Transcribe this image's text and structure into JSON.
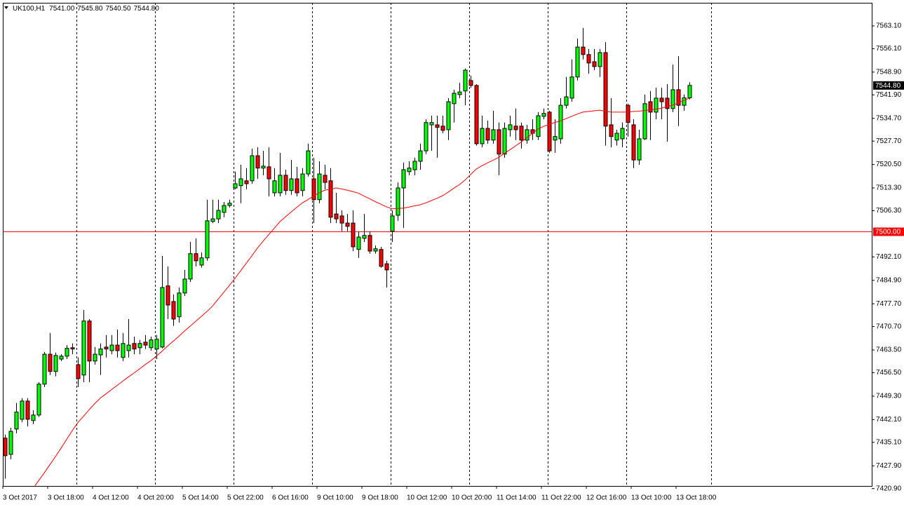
{
  "header": {
    "symbol": "UK100,H1",
    "open": "7541.00",
    "high": "7545.80",
    "low": "7540.50",
    "close": "7544.80"
  },
  "chart_data": {
    "type": "candlestick",
    "categories": [
      "3 Oct 2017",
      null,
      null,
      null,
      null,
      null,
      null,
      null,
      "3 Oct 18:00",
      null,
      null,
      null,
      null,
      null,
      null,
      null,
      "4 Oct 12:00",
      null,
      null,
      null,
      null,
      null,
      null,
      null,
      "4 Oct 20:00",
      null,
      null,
      null,
      null,
      null,
      null,
      null,
      "5 Oct 14:00",
      null,
      null,
      null,
      null,
      null,
      null,
      null,
      "5 Oct 22:00",
      null,
      null,
      null,
      null,
      null,
      null,
      null,
      "6 Oct 16:00",
      null,
      null,
      null,
      null,
      null,
      null,
      null,
      "9 Oct 10:00",
      null,
      null,
      null,
      null,
      null,
      null,
      null,
      "9 Oct 18:00",
      null,
      null,
      null,
      null,
      null,
      null,
      null,
      "10 Oct 12:00",
      null,
      null,
      null,
      null,
      null,
      null,
      null,
      "10 Oct 20:00",
      null,
      null,
      null,
      null,
      null,
      null,
      null,
      "11 Oct 14:00",
      null,
      null,
      null,
      null,
      null,
      null,
      null,
      "11 Oct 22:00",
      null,
      null,
      null,
      null,
      null,
      null,
      null,
      "12 Oct 16:00",
      null,
      null,
      null,
      null,
      null,
      null,
      null,
      "13 Oct 10:00",
      null,
      null,
      null,
      null,
      null,
      null,
      null,
      "13 Oct 18:00",
      null,
      null
    ],
    "open": [
      7436.4,
      7431.4,
      7439.2,
      7442.2,
      7447.8,
      7441.8,
      7443.5,
      7453.0,
      7462.2,
      7456.9,
      7460.7,
      7461.6,
      7464.2,
      7459.0,
      7455.8,
      7472.4,
      7460.1,
      7462.0,
      7464.4,
      7463.3,
      7465.0,
      7461.2,
      7463.3,
      7465.5,
      7464.2,
      7465.9,
      7464.2,
      7463.8,
      7464.4,
      7483.2,
      7478.4,
      7473.7,
      7481.0,
      7485.3,
      7493.1,
      7489.6,
      7491.8,
      7503.0,
      7503.8,
      7505.8,
      7507.9,
      7513.3,
      7514.0,
      7515.5,
      7515.5,
      7523.2,
      7519.4,
      7519.8,
      7511.8,
      7511.8,
      7517.2,
      7512.5,
      7516.1,
      7512.5,
      7517.6,
      7516.1,
      7509.7,
      7517.2,
      7515.5,
      7505.3,
      7504.7,
      7502.5,
      7502.5,
      7494.4,
      7497.8,
      7498.7,
      7493.9,
      7494.4,
      7490.0,
      7500.0,
      7504.9,
      7513.3,
      7518.3,
      7518.9,
      7521.5,
      7524.7,
      7532.7,
      7532.7,
      7532.3,
      7531.2,
      7539.2,
      7542.0,
      7543.1,
      7546.3,
      7544.8,
      7526.9,
      7531.6,
      7528.0,
      7531.2,
      7523.7,
      7531.2,
      7532.3,
      7532.3,
      7528.0,
      7531.2,
      7529.1,
      7535.3,
      7536.6,
      7528.0,
      7528.4,
      7538.7,
      7540.9,
      7547.4,
      7556.6,
      7554.3,
      7552.1,
      7550.6,
      7554.9,
      7532.7,
      7528.0,
      7528.4,
      7538.7,
      7532.7,
      7521.9,
      7528.4,
      7539.8,
      7536.6,
      7540.9,
      7540.9,
      7537.7,
      7543.5,
      7538.7,
      7541.0
    ],
    "high": [
      7437.5,
      7439.6,
      7447.2,
      7448.7,
      7448.7,
      7445.0,
      7453.6,
      7462.9,
      7468.7,
      7462.7,
      7462.2,
      7465.0,
      7465.5,
      7461.2,
      7475.8,
      7473.0,
      7464.4,
      7465.5,
      7468.1,
      7468.1,
      7469.8,
      7468.7,
      7473.0,
      7467.6,
      7466.6,
      7468.1,
      7467.6,
      7468.1,
      7492.4,
      7489.2,
      7480.6,
      7482.7,
      7488.1,
      7496.7,
      7497.8,
      7493.5,
      7509.7,
      7509.7,
      7509.7,
      7509.0,
      7509.7,
      7518.3,
      7520.4,
      7519.4,
      7525.4,
      7525.8,
      7524.7,
      7525.8,
      7519.4,
      7524.1,
      7518.9,
      7521.9,
      7519.8,
      7519.4,
      7526.9,
      7522.6,
      7521.5,
      7520.4,
      7519.4,
      7511.8,
      7506.4,
      7505.3,
      7506.4,
      7500.0,
      7505.3,
      7500.0,
      7495.6,
      7495.2,
      7490.9,
      7506.4,
      7515.0,
      7521.1,
      7521.5,
      7522.6,
      7526.9,
      7534.4,
      7535.5,
      7535.5,
      7535.5,
      7540.9,
      7543.5,
      7545.6,
      7550.0,
      7547.8,
      7545.2,
      7535.5,
      7534.0,
      7537.0,
      7533.4,
      7533.4,
      7535.5,
      7537.7,
      7533.4,
      7532.7,
      7534.4,
      7536.6,
      7537.7,
      7537.0,
      7534.4,
      7540.9,
      7547.4,
      7552.8,
      7559.2,
      7562.5,
      7556.0,
      7556.0,
      7556.0,
      7558.1,
      7540.9,
      7531.2,
      7533.4,
      7539.2,
      7534.4,
      7531.2,
      7542.0,
      7543.1,
      7544.1,
      7544.1,
      7545.2,
      7551.2,
      7553.8,
      7542.0,
      7545.8
    ],
    "low": [
      7423.9,
      7429.9,
      7437.9,
      7441.3,
      7440.0,
      7440.7,
      7442.9,
      7452.1,
      7455.8,
      7455.4,
      7460.1,
      7460.7,
      7462.2,
      7452.1,
      7453.6,
      7453.6,
      7459.0,
      7455.8,
      7461.2,
      7462.2,
      7461.2,
      7460.1,
      7461.2,
      7462.2,
      7462.2,
      7463.8,
      7463.3,
      7460.7,
      7464.0,
      7473.0,
      7470.9,
      7471.9,
      7480.1,
      7484.4,
      7489.2,
      7488.8,
      7490.9,
      7502.5,
      7502.5,
      7504.3,
      7507.3,
      7512.9,
      7508.6,
      7512.9,
      7514.6,
      7516.1,
      7517.2,
      7510.7,
      7510.7,
      7510.7,
      7511.2,
      7511.2,
      7510.7,
      7510.7,
      7516.8,
      7502.5,
      7508.6,
      7512.9,
      7502.5,
      7502.5,
      7500.0,
      7500.0,
      7493.9,
      7491.8,
      7496.7,
      7493.1,
      7493.1,
      7488.8,
      7482.7,
      7496.7,
      7503.2,
      7501.0,
      7517.2,
      7517.2,
      7518.9,
      7523.7,
      7524.7,
      7522.6,
      7530.1,
      7528.0,
      7533.4,
      7540.9,
      7538.7,
      7544.1,
      7526.3,
      7525.8,
      7526.9,
      7526.9,
      7517.2,
      7522.6,
      7529.1,
      7528.0,
      7525.4,
      7526.9,
      7528.0,
      7528.0,
      7534.4,
      7524.1,
      7524.1,
      7526.9,
      7537.7,
      7539.8,
      7546.3,
      7552.8,
      7548.4,
      7549.5,
      7547.4,
      7526.3,
      7525.8,
      7526.3,
      7525.8,
      7529.1,
      7519.4,
      7520.4,
      7528.0,
      7528.0,
      7534.4,
      7534.4,
      7527.5,
      7536.6,
      7532.3,
      7537.0,
      7540.5
    ],
    "close": [
      7431.0,
      7438.5,
      7444.4,
      7447.8,
      7442.2,
      7443.5,
      7453.0,
      7462.2,
      7456.9,
      7461.8,
      7461.6,
      7464.0,
      7463.8,
      7454.7,
      7472.4,
      7460.1,
      7462.2,
      7463.8,
      7463.8,
      7465.0,
      7463.3,
      7465.5,
      7465.0,
      7463.8,
      7465.5,
      7465.0,
      7466.6,
      7466.8,
      7482.7,
      7477.3,
      7473.0,
      7481.0,
      7485.3,
      7493.1,
      7490.9,
      7491.8,
      7503.2,
      7503.8,
      7506.4,
      7507.9,
      7508.6,
      7514.6,
      7516.1,
      7514.6,
      7523.2,
      7519.4,
      7520.0,
      7516.1,
      7515.5,
      7517.2,
      7512.5,
      7516.1,
      7511.8,
      7517.6,
      7524.7,
      7509.7,
      7517.6,
      7515.0,
      7504.3,
      7503.8,
      7502.5,
      7501.5,
      7495.2,
      7498.2,
      7498.7,
      7493.9,
      7494.6,
      7489.2,
      7488.1,
      7504.7,
      7513.3,
      7518.9,
      7519.4,
      7521.5,
      7524.7,
      7533.4,
      7533.4,
      7531.9,
      7531.0,
      7539.8,
      7542.4,
      7542.8,
      7549.5,
      7544.8,
      7526.9,
      7531.6,
      7528.0,
      7531.2,
      7523.7,
      7531.6,
      7532.7,
      7531.2,
      7528.0,
      7531.2,
      7530.1,
      7535.5,
      7536.2,
      7524.7,
      7529.1,
      7538.7,
      7541.3,
      7547.4,
      7556.6,
      7554.3,
      7551.7,
      7550.6,
      7554.9,
      7532.3,
      7529.1,
      7530.1,
      7531.6,
      7533.4,
      7521.9,
      7528.4,
      7539.2,
      7536.6,
      7540.9,
      7539.8,
      7537.7,
      7543.5,
      7538.7,
      7541.0,
      7544.8
    ],
    "up_color": "#00ff00",
    "down_color": "#ff0000",
    "moving_average": {
      "color": "#ff0000",
      "values": [
        null,
        null,
        null,
        null,
        null,
        7420.9,
        7423.3,
        7425.7,
        7428.2,
        7430.7,
        7433.3,
        7436.0,
        7438.7,
        7441.2,
        7443.1,
        7445.1,
        7447.0,
        7448.7,
        7450.0,
        7451.3,
        7452.6,
        7453.9,
        7455.2,
        7456.4,
        7457.7,
        7459.0,
        7460.2,
        7461.6,
        7463.1,
        7464.7,
        7466.2,
        7467.7,
        7469.3,
        7470.8,
        7472.3,
        7473.8,
        7475.3,
        7477.0,
        7479.1,
        7481.2,
        7483.3,
        7485.5,
        7487.8,
        7490.1,
        7492.4,
        7494.8,
        7496.9,
        7498.9,
        7500.9,
        7502.9,
        7504.4,
        7505.9,
        7507.3,
        7508.7,
        7509.7,
        7510.8,
        7511.8,
        7512.6,
        7512.9,
        7513.3,
        7513.0,
        7512.6,
        7512.2,
        7511.7,
        7510.8,
        7510.0,
        7509.1,
        7508.3,
        7507.5,
        7506.9,
        7507.0,
        7507.1,
        7507.4,
        7507.8,
        7508.1,
        7508.7,
        7509.4,
        7510.1,
        7510.9,
        7512.0,
        7513.2,
        7514.3,
        7515.7,
        7517.4,
        7519.1,
        7520.1,
        7521.0,
        7521.8,
        7522.7,
        7523.9,
        7525.0,
        7526.2,
        7527.4,
        7528.7,
        7530.0,
        7531.4,
        7532.2,
        7532.8,
        7533.4,
        7533.9,
        7534.6,
        7535.3,
        7536.0,
        7536.6,
        7536.8,
        7537.0,
        7537.2,
        7536.9,
        7536.6,
        7536.6,
        7536.6,
        7536.6,
        7536.8,
        7536.9,
        7537.1,
        7537.3,
        7537.5,
        7537.8,
        7538.3,
        7538.7,
        7539.4,
        7540.2,
        7540.9
      ]
    },
    "ylim": [
      7421.7,
      7570.2
    ],
    "yticks": [
      {
        "value": 7563.1,
        "label": "7563.10"
      },
      {
        "value": 7556.1,
        "label": "7556.10"
      },
      {
        "value": 7548.9,
        "label": "7548.90"
      },
      {
        "value": 7541.9,
        "label": "7541.90"
      },
      {
        "value": 7534.7,
        "label": "7534.70"
      },
      {
        "value": 7527.7,
        "label": "7527.70"
      },
      {
        "value": 7520.5,
        "label": "7520.50"
      },
      {
        "value": 7513.3,
        "label": "7513.30"
      },
      {
        "value": 7506.3,
        "label": "7506.30"
      },
      {
        "value": 7492.1,
        "label": "7492.10"
      },
      {
        "value": 7484.9,
        "label": "7484.90"
      },
      {
        "value": 7477.7,
        "label": "7477.70"
      },
      {
        "value": 7470.7,
        "label": "7470.70"
      },
      {
        "value": 7463.5,
        "label": "7463.50"
      },
      {
        "value": 7456.5,
        "label": "7456.50"
      },
      {
        "value": 7449.3,
        "label": "7449.30"
      },
      {
        "value": 7442.1,
        "label": "7442.10"
      },
      {
        "value": 7435.1,
        "label": "7435.10"
      },
      {
        "value": 7427.9,
        "label": "7427.90"
      },
      {
        "value": 7420.9,
        "label": "7420.90"
      }
    ],
    "hline": {
      "value": 7500,
      "label": "7500.00",
      "color": "#ff0000"
    },
    "last_price": {
      "value": 7544.8,
      "label": "7544.80"
    }
  }
}
